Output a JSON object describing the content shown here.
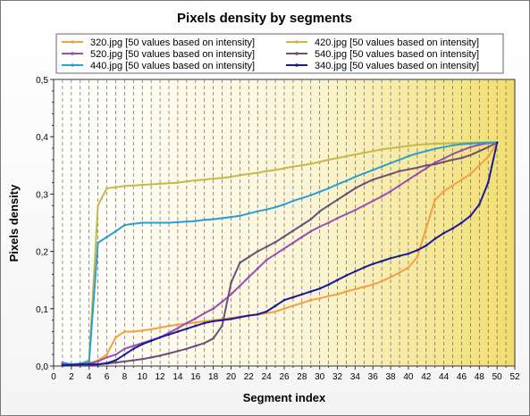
{
  "chart_data": {
    "type": "line",
    "title": "Pixels density by segments",
    "xlabel": "Segment index",
    "ylabel": "Pixels density",
    "xlim": [
      0,
      52
    ],
    "ylim": [
      0,
      0.5
    ],
    "x_ticks": [
      0,
      2,
      4,
      6,
      8,
      10,
      12,
      14,
      16,
      18,
      20,
      22,
      24,
      26,
      28,
      30,
      32,
      34,
      36,
      38,
      40,
      42,
      44,
      46,
      48,
      50,
      52
    ],
    "y_ticks": [
      0,
      0.1,
      0.2,
      0.3,
      0.4,
      0.5
    ],
    "y_tick_labels": [
      "0,0",
      "0,1",
      "0,2",
      "0,3",
      "0,4",
      "0,5"
    ],
    "grid": "vertical dashed lines at every segment index",
    "legend_position": "top",
    "background": "white-to-yellow horizontal gradient",
    "series": [
      {
        "name": "320.jpg [50 values based on intensity]",
        "color": "#f4a040",
        "x": [
          1,
          2,
          3,
          4,
          5,
          6,
          7,
          8,
          9,
          10,
          11,
          12,
          13,
          14,
          15,
          16,
          17,
          18,
          19,
          20,
          21,
          22,
          23,
          24,
          25,
          26,
          27,
          28,
          29,
          30,
          31,
          32,
          33,
          34,
          35,
          36,
          37,
          38,
          39,
          40,
          41,
          42,
          43,
          44,
          45,
          46,
          47,
          48,
          49,
          50
        ],
        "values": [
          0.005,
          0.003,
          0.004,
          0.005,
          0.01,
          0.02,
          0.05,
          0.06,
          0.06,
          0.062,
          0.064,
          0.067,
          0.07,
          0.072,
          0.074,
          0.076,
          0.078,
          0.08,
          0.082,
          0.084,
          0.086,
          0.088,
          0.09,
          0.092,
          0.095,
          0.1,
          0.105,
          0.11,
          0.115,
          0.118,
          0.122,
          0.125,
          0.13,
          0.134,
          0.138,
          0.142,
          0.148,
          0.155,
          0.163,
          0.172,
          0.19,
          0.24,
          0.29,
          0.305,
          0.315,
          0.325,
          0.335,
          0.35,
          0.365,
          0.39
        ]
      },
      {
        "name": "420.jpg [50 values based on intensity]",
        "color": "#c8b848",
        "x": [
          1,
          2,
          3,
          4,
          5,
          6,
          7,
          8,
          9,
          10,
          11,
          12,
          13,
          14,
          15,
          16,
          17,
          18,
          19,
          20,
          21,
          22,
          23,
          24,
          25,
          26,
          27,
          28,
          29,
          30,
          31,
          32,
          33,
          34,
          35,
          36,
          37,
          38,
          39,
          40,
          41,
          42,
          43,
          44,
          45,
          46,
          47,
          48,
          49,
          50
        ],
        "values": [
          0.005,
          0.003,
          0.004,
          0.01,
          0.28,
          0.31,
          0.312,
          0.314,
          0.315,
          0.316,
          0.317,
          0.318,
          0.319,
          0.32,
          0.322,
          0.324,
          0.325,
          0.327,
          0.328,
          0.33,
          0.333,
          0.335,
          0.337,
          0.34,
          0.342,
          0.345,
          0.348,
          0.35,
          0.353,
          0.356,
          0.36,
          0.363,
          0.366,
          0.369,
          0.372,
          0.375,
          0.378,
          0.38,
          0.382,
          0.384,
          0.386,
          0.387,
          0.388,
          0.388,
          0.389,
          0.389,
          0.39,
          0.39,
          0.39,
          0.39
        ]
      },
      {
        "name": "520.jpg [50 values based on intensity]",
        "color": "#9a4fb0",
        "x": [
          1,
          2,
          3,
          4,
          5,
          6,
          7,
          8,
          9,
          10,
          11,
          12,
          13,
          14,
          15,
          16,
          17,
          18,
          19,
          20,
          21,
          22,
          23,
          24,
          25,
          26,
          27,
          28,
          29,
          30,
          31,
          32,
          33,
          34,
          35,
          36,
          37,
          38,
          39,
          40,
          41,
          42,
          43,
          44,
          45,
          46,
          47,
          48,
          49,
          50
        ],
        "values": [
          0.006,
          0.003,
          0.003,
          0.004,
          0.008,
          0.015,
          0.02,
          0.03,
          0.035,
          0.04,
          0.045,
          0.05,
          0.058,
          0.066,
          0.075,
          0.083,
          0.092,
          0.1,
          0.112,
          0.125,
          0.14,
          0.155,
          0.17,
          0.185,
          0.195,
          0.205,
          0.215,
          0.225,
          0.235,
          0.243,
          0.25,
          0.258,
          0.265,
          0.272,
          0.28,
          0.288,
          0.296,
          0.305,
          0.315,
          0.325,
          0.335,
          0.345,
          0.355,
          0.362,
          0.37,
          0.376,
          0.382,
          0.386,
          0.389,
          0.39
        ]
      },
      {
        "name": "540.jpg [50 values based on intensity]",
        "color": "#6e4f78",
        "x": [
          1,
          2,
          3,
          4,
          5,
          6,
          7,
          8,
          9,
          10,
          11,
          12,
          13,
          14,
          15,
          16,
          17,
          18,
          19,
          20,
          21,
          22,
          23,
          24,
          25,
          26,
          27,
          28,
          29,
          30,
          31,
          32,
          33,
          34,
          35,
          36,
          37,
          38,
          39,
          40,
          41,
          42,
          43,
          44,
          45,
          46,
          47,
          48,
          49,
          50
        ],
        "values": [
          0.004,
          0.002,
          0.002,
          0.002,
          0.003,
          0.004,
          0.006,
          0.008,
          0.01,
          0.012,
          0.015,
          0.018,
          0.022,
          0.026,
          0.03,
          0.035,
          0.04,
          0.048,
          0.07,
          0.145,
          0.18,
          0.19,
          0.2,
          0.208,
          0.216,
          0.226,
          0.236,
          0.246,
          0.256,
          0.27,
          0.28,
          0.29,
          0.3,
          0.31,
          0.318,
          0.325,
          0.33,
          0.335,
          0.34,
          0.343,
          0.346,
          0.35,
          0.352,
          0.356,
          0.36,
          0.363,
          0.368,
          0.375,
          0.382,
          0.39
        ]
      },
      {
        "name": "440.jpg [50 values based on intensity]",
        "color": "#2a9fd6",
        "x": [
          1,
          2,
          3,
          4,
          5,
          6,
          7,
          8,
          9,
          10,
          11,
          12,
          13,
          14,
          15,
          16,
          17,
          18,
          19,
          20,
          21,
          22,
          23,
          24,
          25,
          26,
          27,
          28,
          29,
          30,
          31,
          32,
          33,
          34,
          35,
          36,
          37,
          38,
          39,
          40,
          41,
          42,
          43,
          44,
          45,
          46,
          47,
          48,
          49,
          50
        ],
        "values": [
          0.005,
          0.003,
          0.004,
          0.008,
          0.215,
          0.225,
          0.235,
          0.246,
          0.248,
          0.25,
          0.25,
          0.25,
          0.25,
          0.251,
          0.252,
          0.253,
          0.255,
          0.256,
          0.258,
          0.26,
          0.262,
          0.266,
          0.27,
          0.273,
          0.277,
          0.282,
          0.288,
          0.293,
          0.298,
          0.304,
          0.31,
          0.317,
          0.323,
          0.33,
          0.336,
          0.342,
          0.348,
          0.354,
          0.36,
          0.366,
          0.371,
          0.375,
          0.379,
          0.382,
          0.385,
          0.387,
          0.388,
          0.389,
          0.39,
          0.39
        ]
      },
      {
        "name": "340.jpg [50 values based on intensity]",
        "color": "#1a1a9a",
        "x": [
          1,
          2,
          3,
          4,
          5,
          6,
          7,
          8,
          9,
          10,
          11,
          12,
          13,
          14,
          15,
          16,
          17,
          18,
          19,
          20,
          21,
          22,
          23,
          24,
          25,
          26,
          27,
          28,
          29,
          30,
          31,
          32,
          33,
          34,
          35,
          36,
          37,
          38,
          39,
          40,
          41,
          42,
          43,
          44,
          45,
          46,
          47,
          48,
          49,
          50
        ],
        "values": [
          0.002,
          0.002,
          0.003,
          0.003,
          0.003,
          0.005,
          0.01,
          0.02,
          0.03,
          0.038,
          0.044,
          0.05,
          0.055,
          0.06,
          0.065,
          0.07,
          0.075,
          0.078,
          0.08,
          0.082,
          0.085,
          0.088,
          0.09,
          0.095,
          0.105,
          0.115,
          0.12,
          0.125,
          0.13,
          0.135,
          0.142,
          0.15,
          0.158,
          0.165,
          0.172,
          0.178,
          0.183,
          0.188,
          0.192,
          0.196,
          0.202,
          0.21,
          0.222,
          0.232,
          0.24,
          0.25,
          0.262,
          0.282,
          0.32,
          0.39
        ]
      }
    ]
  }
}
